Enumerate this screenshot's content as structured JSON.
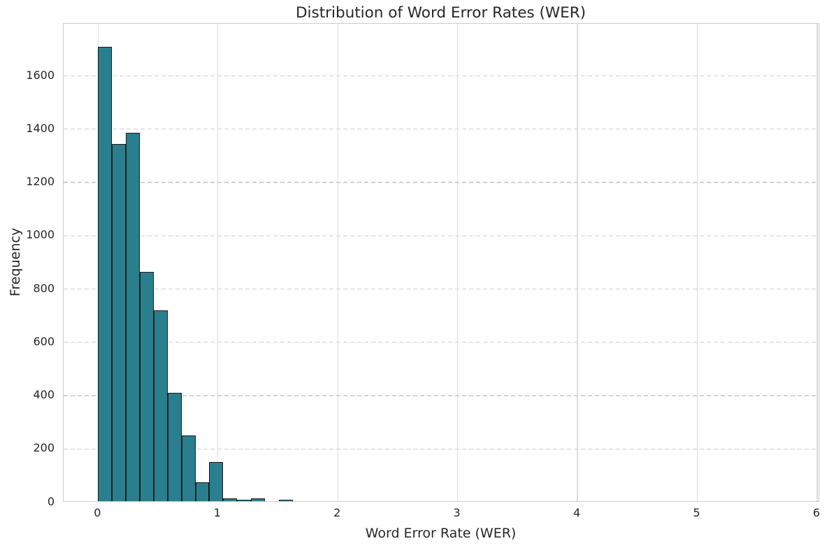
{
  "figure": {
    "title": "Distribution of Word Error Rates (WER)",
    "xlabel": "Word Error Rate (WER)",
    "ylabel": "Frequency"
  },
  "colors": {
    "bar_fill": "#2a7f8e",
    "bar_edge": "#1a1a1a",
    "grid_vertical": "#dcdcdc",
    "grid_horizontal": "#d2d2d2",
    "spine": "#cccccc",
    "text": "#262626",
    "background": "#ffffff"
  },
  "chart_data": {
    "type": "bar",
    "subtype": "histogram",
    "title": "Distribution of Word Error Rates (WER)",
    "xlabel": "Word Error Rate (WER)",
    "ylabel": "Frequency",
    "bin_width": 0.116,
    "bin_starts": [
      0.0,
      0.116,
      0.232,
      0.348,
      0.464,
      0.58,
      0.696,
      0.812,
      0.928,
      1.044,
      1.16,
      1.276,
      1.392,
      1.508
    ],
    "values": [
      1705,
      1340,
      1380,
      858,
      714,
      406,
      245,
      70,
      145,
      8,
      3,
      9,
      0,
      5
    ],
    "x_tick_labels": [
      "0",
      "1",
      "2",
      "3",
      "4",
      "5",
      "6"
    ],
    "x_tick_values": [
      0,
      1,
      2,
      3,
      4,
      5,
      6
    ],
    "y_tick_labels": [
      "0",
      "200",
      "400",
      "600",
      "800",
      "1000",
      "1200",
      "1400",
      "1600"
    ],
    "y_tick_values": [
      0,
      200,
      400,
      600,
      800,
      1000,
      1200,
      1400,
      1600
    ],
    "xlim": [
      -0.291,
      6.024
    ],
    "ylim": [
      0,
      1797
    ],
    "grid": {
      "horizontal": "dashed",
      "vertical": "solid",
      "visible": true
    },
    "legend": "none"
  }
}
